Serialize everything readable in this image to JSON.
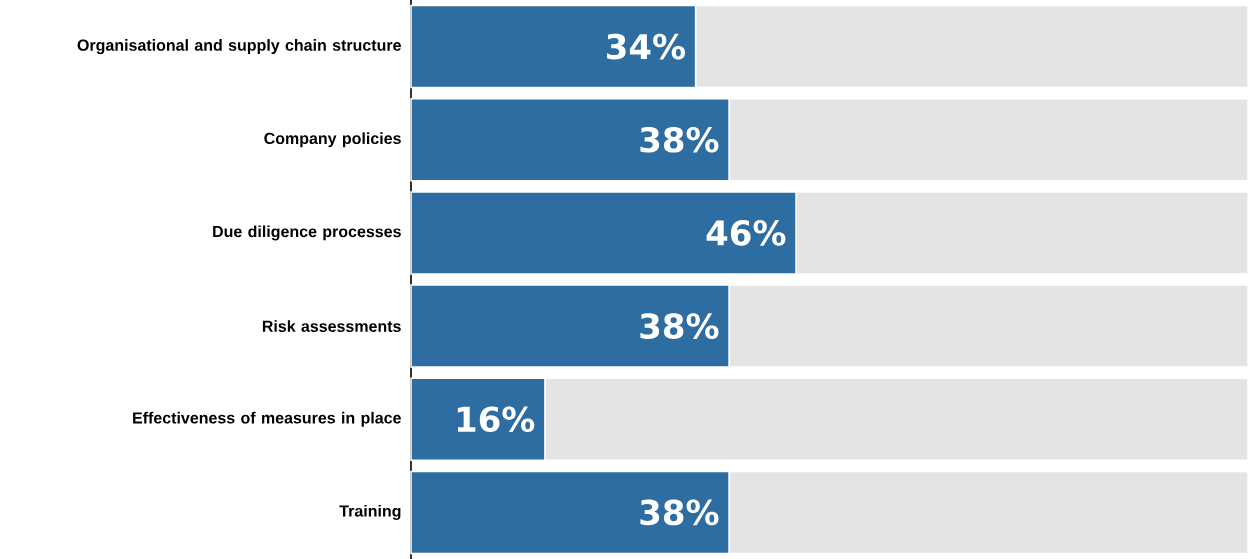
{
  "chart_data": {
    "type": "bar",
    "orientation": "horizontal",
    "stacked": true,
    "categories": [
      "Organisational and supply chain structure",
      "Company policies",
      "Due diligence processes",
      "Risk assessments",
      "Effectiveness of measures in place",
      "Training"
    ],
    "xlim": [
      0,
      100
    ],
    "series": [
      {
        "color": "#2e6da1",
        "values": [
          34,
          38,
          46,
          38,
          16,
          38
        ],
        "value_labels": [
          "34%",
          "38%",
          "46%",
          "38%",
          "16%",
          "38%"
        ]
      },
      {
        "color": "#e4e4e4",
        "values": [
          66,
          62,
          54,
          62,
          84,
          62
        ]
      }
    ]
  }
}
